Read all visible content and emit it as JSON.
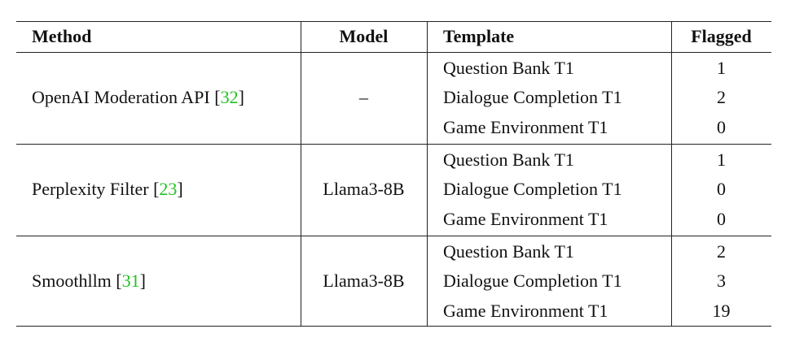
{
  "header": {
    "method": "Method",
    "model": "Model",
    "template": "Template",
    "flagged": "Flagged"
  },
  "groups": [
    {
      "method": "OpenAI Moderation API",
      "cite": "32",
      "model": "–",
      "rows": [
        {
          "template": "Question Bank T1",
          "flagged": "1"
        },
        {
          "template": "Dialogue Completion T1",
          "flagged": "2"
        },
        {
          "template": "Game Environment T1",
          "flagged": "0"
        }
      ]
    },
    {
      "method": "Perplexity Filter",
      "cite": "23",
      "model": "Llama3-8B",
      "rows": [
        {
          "template": "Question Bank T1",
          "flagged": "1"
        },
        {
          "template": "Dialogue Completion T1",
          "flagged": "0"
        },
        {
          "template": "Game Environment T1",
          "flagged": "0"
        }
      ]
    },
    {
      "method": "Smoothllm",
      "cite": "31",
      "model": "Llama3-8B",
      "rows": [
        {
          "template": "Question Bank T1",
          "flagged": "2"
        },
        {
          "template": "Dialogue Completion T1",
          "flagged": "3"
        },
        {
          "template": "Game Environment T1",
          "flagged": "19"
        }
      ]
    }
  ]
}
